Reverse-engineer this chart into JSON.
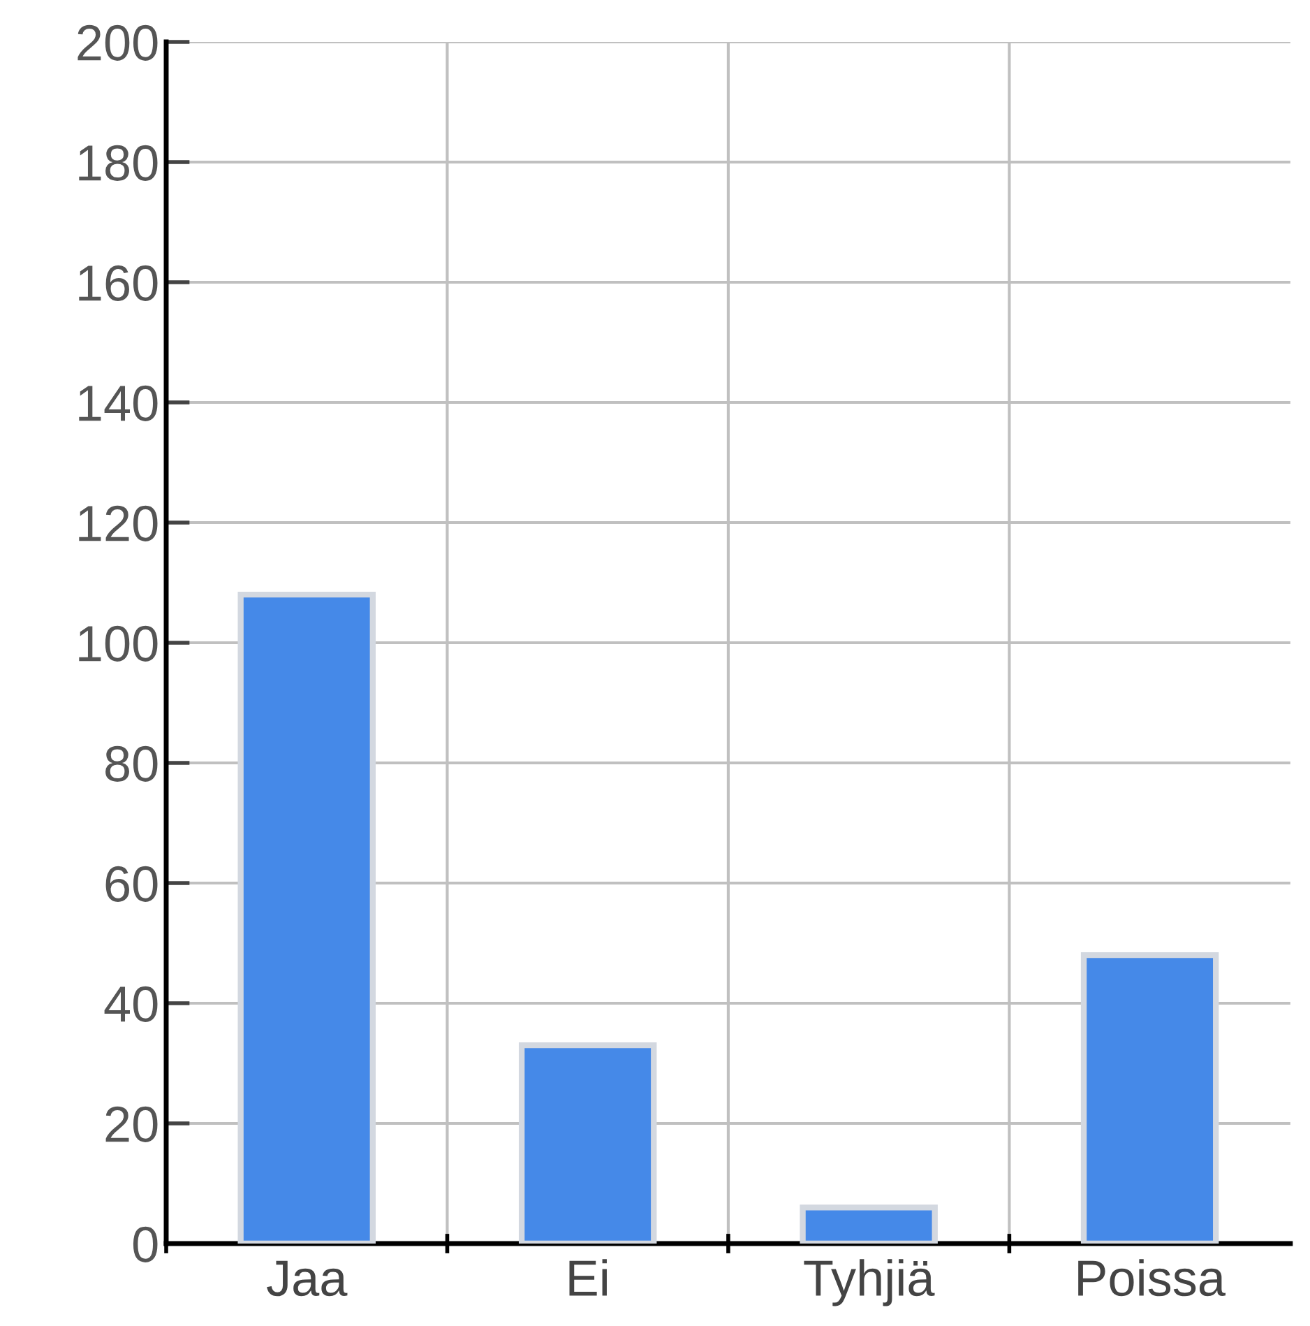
{
  "chart_data": {
    "type": "bar",
    "categories": [
      "Jaa",
      "Ei",
      "Tyhjiä",
      "Poissa"
    ],
    "values": [
      108,
      33,
      6,
      48
    ],
    "color": "#4589e8",
    "ylim": [
      0,
      200
    ],
    "yticks": [
      0,
      20,
      40,
      60,
      80,
      100,
      120,
      140,
      160,
      180,
      200
    ],
    "grid": true
  }
}
